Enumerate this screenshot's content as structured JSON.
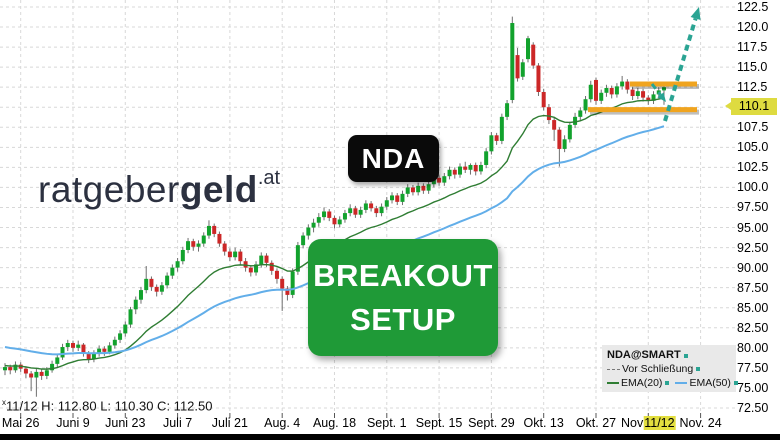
{
  "watermark": {
    "part1": "ratgeber",
    "part2": "geld",
    "suffix": ".at"
  },
  "overlays": {
    "symbol_badge": "NDA",
    "breakout_line1": "BREAKOUT",
    "breakout_line2": "SETUP"
  },
  "legend": {
    "title": "NDA@SMART",
    "items": [
      {
        "label": "Vor Schließung",
        "color": "#888888",
        "style": "dashed"
      },
      {
        "label": "EMA(20)",
        "color": "#2f7d33",
        "style": "solid"
      },
      {
        "label": "EMA(50)",
        "color": "#62aee9",
        "style": "solid"
      }
    ]
  },
  "status_bar": {
    "prefix": "x",
    "ohlc": "11/12 H: 112.80 L: 110.30 C: 112.50"
  },
  "axes": {
    "current_price": "110.1",
    "date_highlight": "11/12"
  },
  "colors": {
    "up": "#12a22d",
    "down": "#cc2727",
    "wick": "#6e6e6e",
    "ema20": "#2f7d33",
    "ema50": "#62aee9",
    "grid": "#d8d8d8",
    "level": "#f0a41f",
    "arrow": "#2aa493",
    "badge_bg": "#dedb40",
    "legend_bg": "#e9e9e9"
  },
  "chart_data": {
    "type": "candlestick",
    "symbol": "NDA@SMART",
    "ylim": [
      71.6,
      123.4
    ],
    "grid": true,
    "legend_position": "bottom-right",
    "y_ticks": [
      {
        "value": 122.5,
        "label": "122.5"
      },
      {
        "value": 120.0,
        "label": "120.0"
      },
      {
        "value": 117.5,
        "label": "117.5"
      },
      {
        "value": 115.0,
        "label": "115.0"
      },
      {
        "value": 112.5,
        "label": "112.5"
      },
      {
        "value": 110.0,
        "label": ""
      },
      {
        "value": 107.5,
        "label": "107.5"
      },
      {
        "value": 105.0,
        "label": "105.0"
      },
      {
        "value": 102.5,
        "label": "102.5"
      },
      {
        "value": 100.0,
        "label": "100.0"
      },
      {
        "value": 97.5,
        "label": "97.50"
      },
      {
        "value": 95.0,
        "label": "95.00"
      },
      {
        "value": 92.5,
        "label": "92.50"
      },
      {
        "value": 90.0,
        "label": "90.00"
      },
      {
        "value": 87.5,
        "label": "87.50"
      },
      {
        "value": 85.0,
        "label": "85.00"
      },
      {
        "value": 82.5,
        "label": "82.50"
      },
      {
        "value": 80.0,
        "label": "80.00"
      },
      {
        "value": 77.5,
        "label": "77.50"
      },
      {
        "value": 75.0,
        "label": "75.00"
      },
      {
        "value": 72.5,
        "label": "72.50"
      }
    ],
    "x_ticks": [
      {
        "label": "Mai 26",
        "day": 3
      },
      {
        "label": "Juni 9",
        "day": 13
      },
      {
        "label": "Juni 23",
        "day": 23
      },
      {
        "label": "Juli 7",
        "day": 33
      },
      {
        "label": "Juli 21",
        "day": 43
      },
      {
        "label": "Aug. 4",
        "day": 53
      },
      {
        "label": "Aug. 18",
        "day": 63
      },
      {
        "label": "Sept. 1",
        "day": 73
      },
      {
        "label": "Sept. 15",
        "day": 83
      },
      {
        "label": "Sept. 29",
        "day": 93
      },
      {
        "label": "Okt. 13",
        "day": 103
      },
      {
        "label": "Okt. 27",
        "day": 113
      },
      {
        "label": "Nov",
        "day": 123,
        "highlight": "11/12"
      },
      {
        "label": "Nov. 24",
        "day": 133
      }
    ],
    "emas": [
      {
        "period": 20,
        "seed": 77.8
      },
      {
        "period": 50,
        "seed": 80.2
      }
    ],
    "annotations": {
      "levels": [
        {
          "name": "breakout-upper",
          "price": 112.9,
          "x_from": 630,
          "x_to": 697
        },
        {
          "name": "breakout-lower",
          "price": 109.7,
          "x_from": 588,
          "x_to": 697
        }
      ],
      "arrows": [
        {
          "name": "pullback-arrow",
          "from": [
            652,
            84
          ],
          "to": [
            666,
            102
          ],
          "width": 3
        },
        {
          "name": "breakout-arrow",
          "from": [
            665,
            121
          ],
          "to": [
            699,
            7
          ],
          "width": 4
        }
      ]
    },
    "last": {
      "date": "11/12",
      "high": 112.8,
      "low": 110.3,
      "close": 112.5,
      "pre_close": 110.1
    },
    "candles": [
      [
        77.2,
        78.1,
        76.6,
        77.6
      ],
      [
        77.6,
        77.9,
        76.7,
        77.2
      ],
      [
        77.2,
        78.3,
        76.9,
        77.9
      ],
      [
        77.9,
        78.2,
        77.0,
        77.4
      ],
      [
        77.4,
        77.7,
        76.2,
        76.8
      ],
      [
        76.8,
        77.1,
        74.6,
        76.3
      ],
      [
        76.3,
        77.4,
        73.9,
        77.0
      ],
      [
        77.0,
        77.3,
        76.0,
        76.5
      ],
      [
        76.5,
        77.6,
        76.1,
        77.2
      ],
      [
        77.2,
        78.4,
        76.9,
        78.0
      ],
      [
        78.0,
        79.2,
        77.6,
        78.8
      ],
      [
        78.8,
        80.5,
        78.5,
        80.1
      ],
      [
        80.1,
        81.0,
        79.6,
        80.6
      ],
      [
        80.6,
        80.9,
        79.5,
        80.0
      ],
      [
        80.0,
        80.9,
        79.6,
        80.4
      ],
      [
        80.4,
        80.6,
        78.9,
        79.3
      ],
      [
        79.3,
        79.6,
        78.1,
        78.6
      ],
      [
        78.6,
        79.7,
        78.2,
        79.3
      ],
      [
        79.3,
        80.3,
        78.9,
        79.9
      ],
      [
        79.9,
        80.2,
        79.0,
        79.5
      ],
      [
        79.5,
        80.7,
        79.2,
        80.3
      ],
      [
        80.3,
        81.4,
        79.9,
        81.0
      ],
      [
        81.0,
        82.2,
        80.6,
        81.8
      ],
      [
        81.8,
        83.3,
        81.4,
        82.9
      ],
      [
        82.9,
        85.1,
        82.5,
        84.8
      ],
      [
        84.8,
        86.4,
        84.2,
        86.0
      ],
      [
        86.0,
        87.6,
        85.5,
        87.2
      ],
      [
        87.2,
        90.2,
        86.8,
        88.6
      ],
      [
        88.6,
        88.9,
        87.1,
        87.6
      ],
      [
        87.6,
        87.9,
        86.4,
        87.0
      ],
      [
        87.0,
        88.2,
        86.6,
        87.8
      ],
      [
        87.8,
        89.4,
        87.4,
        89.0
      ],
      [
        89.0,
        90.4,
        88.6,
        90.0
      ],
      [
        90.0,
        91.2,
        89.5,
        90.8
      ],
      [
        90.8,
        92.6,
        90.4,
        92.2
      ],
      [
        92.2,
        93.7,
        91.8,
        93.3
      ],
      [
        93.3,
        93.6,
        92.1,
        92.6
      ],
      [
        92.6,
        93.4,
        92.0,
        93.0
      ],
      [
        93.0,
        94.4,
        92.6,
        94.0
      ],
      [
        94.0,
        95.9,
        93.6,
        95.2
      ],
      [
        95.2,
        95.5,
        93.8,
        94.2
      ],
      [
        94.2,
        94.5,
        92.6,
        93.0
      ],
      [
        93.0,
        93.3,
        91.5,
        92.0
      ],
      [
        92.0,
        92.4,
        90.8,
        91.3
      ],
      [
        91.3,
        92.5,
        90.9,
        92.0
      ],
      [
        92.0,
        92.3,
        90.3,
        90.8
      ],
      [
        90.8,
        91.2,
        89.5,
        90.0
      ],
      [
        90.0,
        90.3,
        88.9,
        89.4
      ],
      [
        89.4,
        90.8,
        89.0,
        90.4
      ],
      [
        90.4,
        91.9,
        90.0,
        91.5
      ],
      [
        91.5,
        91.8,
        90.1,
        90.6
      ],
      [
        90.6,
        90.9,
        89.1,
        89.6
      ],
      [
        89.6,
        89.9,
        88.0,
        88.6
      ],
      [
        88.6,
        88.9,
        84.6,
        87.4
      ],
      [
        87.4,
        87.7,
        85.9,
        86.6
      ],
      [
        86.6,
        89.9,
        86.2,
        89.5
      ],
      [
        89.5,
        93.2,
        89.1,
        92.8
      ],
      [
        92.8,
        94.4,
        92.4,
        94.0
      ],
      [
        94.0,
        95.4,
        93.5,
        95.0
      ],
      [
        95.0,
        96.1,
        94.4,
        95.6
      ],
      [
        95.6,
        96.8,
        95.1,
        96.3
      ],
      [
        96.3,
        97.5,
        95.9,
        97.0
      ],
      [
        97.0,
        97.3,
        95.8,
        96.2
      ],
      [
        96.2,
        96.5,
        94.9,
        95.4
      ],
      [
        95.4,
        96.4,
        95.0,
        96.0
      ],
      [
        96.0,
        97.2,
        95.6,
        96.8
      ],
      [
        96.8,
        97.9,
        96.4,
        97.4
      ],
      [
        97.4,
        97.7,
        96.2,
        96.6
      ],
      [
        96.6,
        97.6,
        96.2,
        97.2
      ],
      [
        97.2,
        98.4,
        96.8,
        98.0
      ],
      [
        98.0,
        98.3,
        97.0,
        97.4
      ],
      [
        97.4,
        97.7,
        96.3,
        96.8
      ],
      [
        96.8,
        98.0,
        96.4,
        97.6
      ],
      [
        97.6,
        98.8,
        97.2,
        98.4
      ],
      [
        98.4,
        99.4,
        98.0,
        99.0
      ],
      [
        99.0,
        99.3,
        97.8,
        98.2
      ],
      [
        98.2,
        99.6,
        97.8,
        99.2
      ],
      [
        99.2,
        100.4,
        98.8,
        100.0
      ],
      [
        100.0,
        100.3,
        99.0,
        99.4
      ],
      [
        99.4,
        100.6,
        99.0,
        100.2
      ],
      [
        100.2,
        100.5,
        99.2,
        99.6
      ],
      [
        99.6,
        100.8,
        99.2,
        100.4
      ],
      [
        100.4,
        101.6,
        100.0,
        101.2
      ],
      [
        101.2,
        101.5,
        100.2,
        100.6
      ],
      [
        100.6,
        101.8,
        100.2,
        101.4
      ],
      [
        101.4,
        102.6,
        101.0,
        102.2
      ],
      [
        102.2,
        102.5,
        101.1,
        101.6
      ],
      [
        101.6,
        103.0,
        101.2,
        102.6
      ],
      [
        102.6,
        103.2,
        101.8,
        102.2
      ],
      [
        102.2,
        103.0,
        101.6,
        102.8
      ],
      [
        102.8,
        103.1,
        101.5,
        102.0
      ],
      [
        102.0,
        103.2,
        101.6,
        102.8
      ],
      [
        102.8,
        104.9,
        102.4,
        104.5
      ],
      [
        104.5,
        106.9,
        104.1,
        106.5
      ],
      [
        106.5,
        106.8,
        105.3,
        105.8
      ],
      [
        105.8,
        109.2,
        105.4,
        108.8
      ],
      [
        108.8,
        110.9,
        108.4,
        110.5
      ],
      [
        110.9,
        121.3,
        110.5,
        120.5
      ],
      [
        116.5,
        117.4,
        113.2,
        113.6
      ],
      [
        113.8,
        116.0,
        113.4,
        115.6
      ],
      [
        116.0,
        118.9,
        115.6,
        118.6
      ],
      [
        117.8,
        118.1,
        114.8,
        115.2
      ],
      [
        115.2,
        115.5,
        111.4,
        111.9
      ],
      [
        111.9,
        112.3,
        109.6,
        110.0
      ],
      [
        110.0,
        110.4,
        107.9,
        108.4
      ],
      [
        108.4,
        108.8,
        105.8,
        107.2
      ],
      [
        107.2,
        107.5,
        102.6,
        104.8
      ],
      [
        104.8,
        106.5,
        104.4,
        106.0
      ],
      [
        106.0,
        108.2,
        105.6,
        107.8
      ],
      [
        107.8,
        109.3,
        107.4,
        108.8
      ],
      [
        108.8,
        110.0,
        108.3,
        109.6
      ],
      [
        109.6,
        111.4,
        109.2,
        111.0
      ],
      [
        111.0,
        113.3,
        110.6,
        112.8
      ],
      [
        113.4,
        113.7,
        110.3,
        110.8
      ],
      [
        110.8,
        112.2,
        110.4,
        111.8
      ],
      [
        111.8,
        112.8,
        111.3,
        112.4
      ],
      [
        112.4,
        112.7,
        111.1,
        111.6
      ],
      [
        111.6,
        113.0,
        111.2,
        112.6
      ],
      [
        112.6,
        113.9,
        112.2,
        113.2
      ],
      [
        113.2,
        113.5,
        111.7,
        112.2
      ],
      [
        112.2,
        112.5,
        110.9,
        111.4
      ],
      [
        111.4,
        112.4,
        111.0,
        112.0
      ],
      [
        112.0,
        112.3,
        110.7,
        111.2
      ],
      [
        111.2,
        111.5,
        110.3,
        110.8
      ],
      [
        110.8,
        112.0,
        110.4,
        111.6
      ],
      [
        111.6,
        112.5,
        111.1,
        112.1
      ],
      [
        112.1,
        112.8,
        110.3,
        112.5
      ]
    ]
  }
}
